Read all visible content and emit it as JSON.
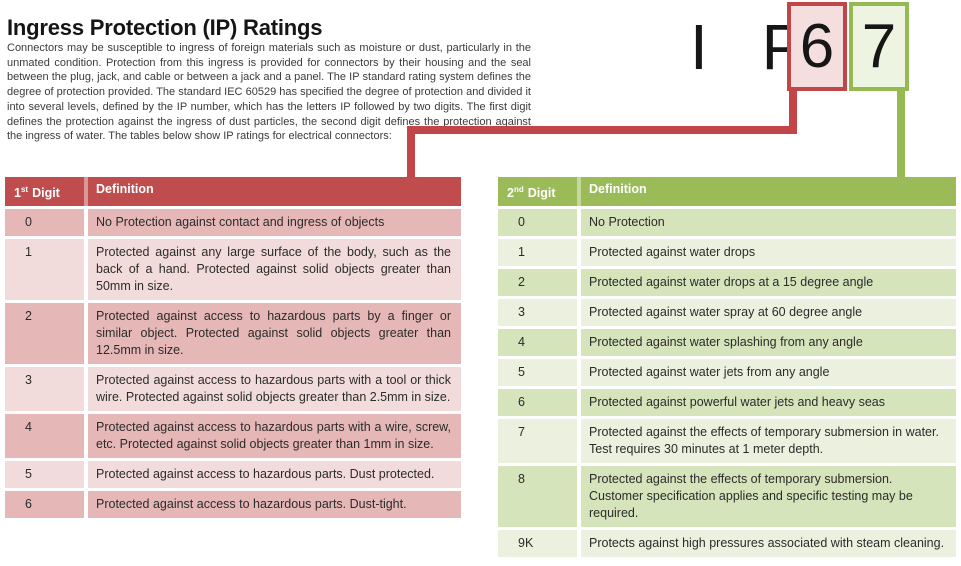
{
  "page": {
    "title": "Ingress Protection (IP) Ratings",
    "intro": "Connectors may be susceptible to ingress of foreign materials such as moisture or dust, particularly in the unmated condition. Protection from this ingress is provided for connectors by their housing and the seal between the plug, jack, and cable or between a jack and a panel. The IP standard rating system defines the degree of protection provided. The standard IEC 60529 has specified the degree of protection and divided it into several levels, defined by the IP number, which has the letters IP followed by two digits. The first digit defines the protection against the ingress of dust particles, the second digit defines the protection against the ingress of water. The tables below show IP ratings for electrical connectors:"
  },
  "ip_graphic": {
    "prefix": "I P",
    "first_digit": "6",
    "second_digit": "7"
  },
  "colors": {
    "red_header": "#bf4d4d",
    "red_row_dark": "#e5b8b7",
    "red_row_light": "#f2dcdb",
    "red_line": "#c24648",
    "red_box_fill": "#f5dfde",
    "green_header": "#9bbb59",
    "green_row_dark": "#d6e4bc",
    "green_row_light": "#ebf1de",
    "green_line": "#96ba52",
    "green_box_fill": "#eef4e2"
  },
  "left_table": {
    "header": {
      "digit_num": "1",
      "digit_suffix": "st",
      "digit_word": "Digit",
      "definition": "Definition"
    },
    "rows": [
      {
        "digit": "0",
        "definition": "No Protection against contact and ingress of objects"
      },
      {
        "digit": "1",
        "definition": "Protected against any large surface of the body, such as the back of a hand. Protected against solid objects greater than 50mm in size."
      },
      {
        "digit": "2",
        "definition": "Protected against access to hazardous parts by a finger or similar object. Protected against solid objects greater than 12.5mm in size."
      },
      {
        "digit": "3",
        "definition": "Protected against access to hazardous parts with a tool or thick wire. Protected against solid objects greater than 2.5mm in size."
      },
      {
        "digit": "4",
        "definition": "Protected against access to hazardous parts with a wire, screw, etc. Protected against solid objects greater than 1mm in size."
      },
      {
        "digit": "5",
        "definition": "Protected against access to hazardous parts. Dust protected."
      },
      {
        "digit": "6",
        "definition": "Protected against access to hazardous parts. Dust-tight."
      }
    ]
  },
  "right_table": {
    "header": {
      "digit_num": "2",
      "digit_suffix": "nd",
      "digit_word": "Digit",
      "definition": "Definition"
    },
    "rows": [
      {
        "digit": "0",
        "definition": "No Protection"
      },
      {
        "digit": "1",
        "definition": "Protected against water drops"
      },
      {
        "digit": "2",
        "definition": "Protected against water drops at a 15 degree angle"
      },
      {
        "digit": "3",
        "definition": "Protected against water spray at 60 degree angle"
      },
      {
        "digit": "4",
        "definition": "Protected against water splashing from any angle"
      },
      {
        "digit": "5",
        "definition": "Protected against water jets from any angle"
      },
      {
        "digit": "6",
        "definition": "Protected against powerful water jets and heavy seas"
      },
      {
        "digit": "7",
        "definition": "Protected against the effects of temporary submersion in water. Test requires 30 minutes at 1 meter depth."
      },
      {
        "digit": "8",
        "definition": "Protected against the effects of temporary submersion. Customer specification applies and specific testing may be required."
      },
      {
        "digit": "9K",
        "definition": "Protects against high pressures associated with steam cleaning."
      }
    ]
  }
}
